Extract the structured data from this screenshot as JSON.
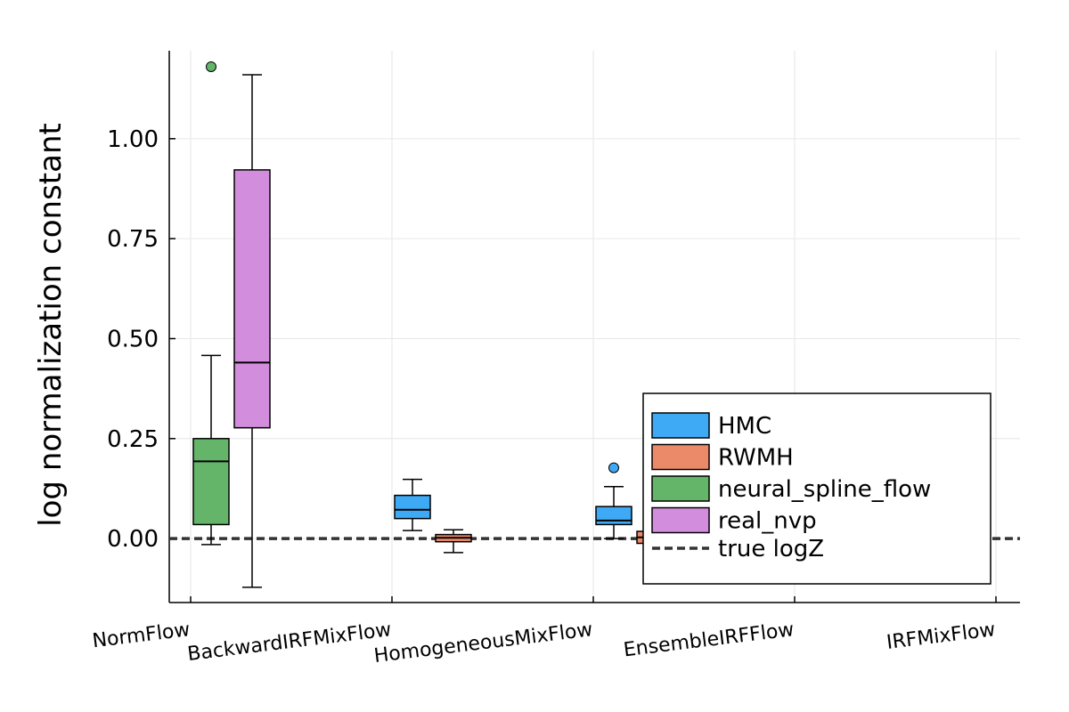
{
  "chart_data": {
    "type": "box",
    "title": "",
    "xlabel": "",
    "ylabel": "log normalization constant",
    "categories": [
      "NormFlow",
      "BackwardIRFMixFlow",
      "HomogeneousMixFlow",
      "EnsembleIRFFlow",
      "IRFMixFlow"
    ],
    "ylim": [
      -0.16,
      1.22
    ],
    "yticks": [
      0.0,
      0.25,
      0.5,
      0.75,
      1.0
    ],
    "ytick_labels": [
      "0.00",
      "0.25",
      "0.50",
      "0.75",
      "1.00"
    ],
    "grid": true,
    "legend_position": "bottom-right",
    "series": [
      {
        "name": "HMC",
        "color": "#3eaaf5",
        "boxes": [
          {
            "category": "BackwardIRFMixFlow",
            "whisker_low": 0.02,
            "q1": 0.05,
            "median": 0.072,
            "q3": 0.108,
            "whisker_high": 0.148,
            "outliers": []
          },
          {
            "category": "HomogeneousMixFlow",
            "whisker_low": 0.0,
            "q1": 0.035,
            "median": 0.045,
            "q3": 0.08,
            "whisker_high": 0.13,
            "outliers": [
              0.177
            ]
          }
        ]
      },
      {
        "name": "RWMH",
        "color": "#eb8a68",
        "boxes": [
          {
            "category": "BackwardIRFMixFlow",
            "whisker_low": -0.035,
            "q1": -0.008,
            "median": 0.002,
            "q3": 0.01,
            "whisker_high": 0.022,
            "outliers": []
          },
          {
            "category": "HomogeneousMixFlow",
            "whisker_low": -0.035,
            "q1": -0.012,
            "median": 0.003,
            "q3": 0.018,
            "whisker_high": 0.045,
            "outliers": []
          }
        ]
      },
      {
        "name": "neural_spline_flow",
        "color": "#64b56a",
        "boxes": [
          {
            "category": "NormFlow",
            "whisker_low": -0.015,
            "q1": 0.035,
            "median": 0.193,
            "q3": 0.25,
            "whisker_high": 0.458,
            "outliers": [
              1.18
            ]
          }
        ]
      },
      {
        "name": "real_nvp",
        "color": "#d28ddd",
        "boxes": [
          {
            "category": "NormFlow",
            "whisker_low": -0.122,
            "q1": 0.277,
            "median": 0.44,
            "q3": 0.922,
            "whisker_high": 1.16,
            "outliers": []
          }
        ]
      }
    ],
    "reference_line": {
      "name": "true logZ",
      "y": 0.0,
      "style": "dashed",
      "color": "#333333"
    }
  }
}
